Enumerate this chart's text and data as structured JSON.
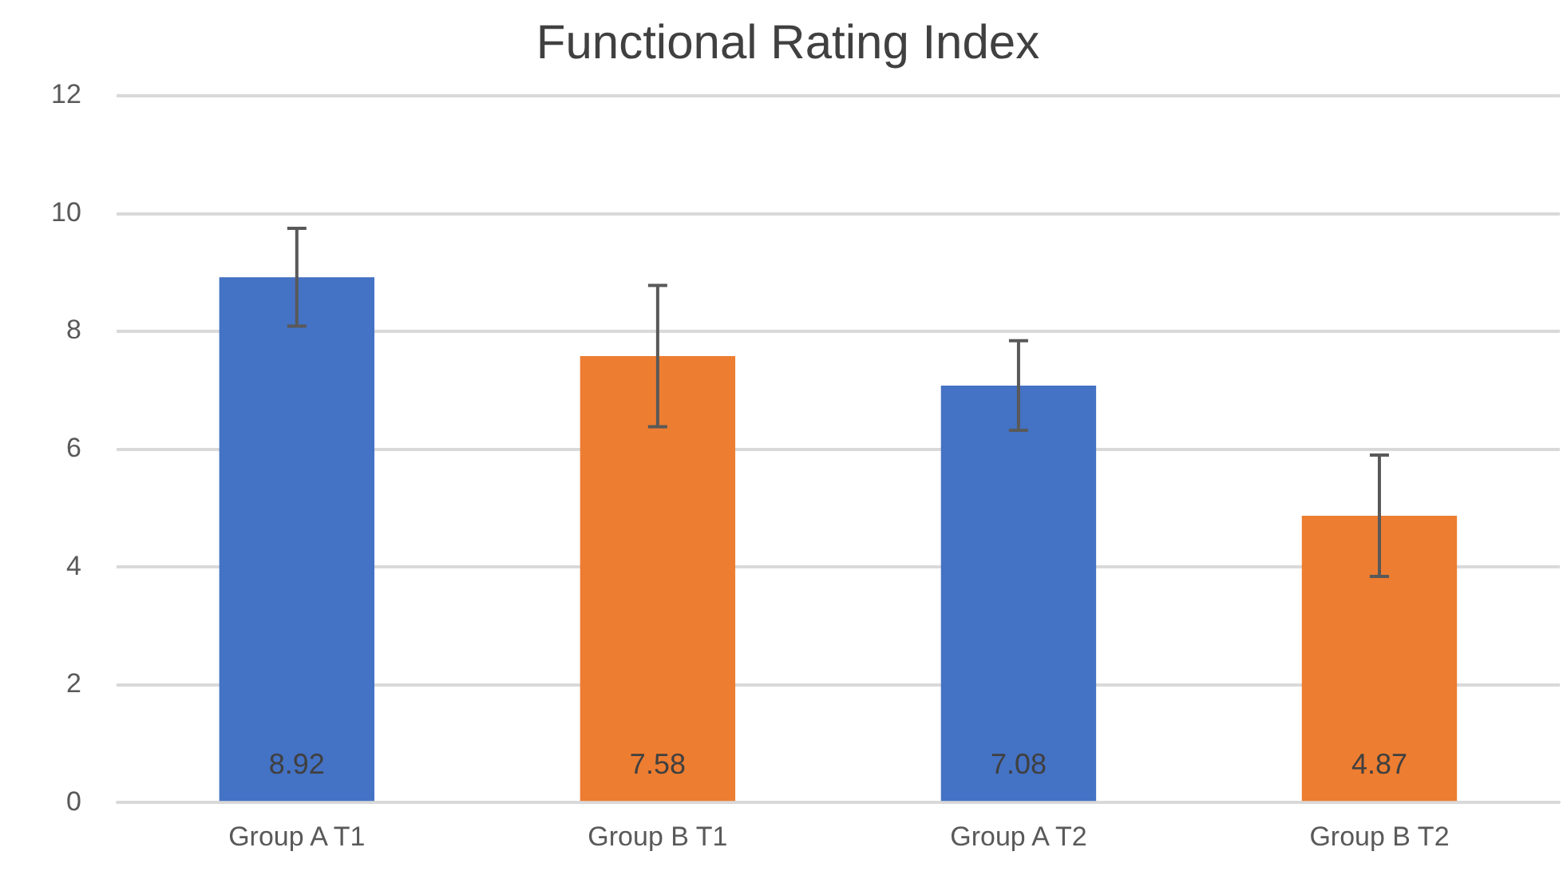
{
  "chart_data": {
    "type": "bar",
    "title": "Functional Rating Index",
    "categories": [
      "Group A T1",
      "Group B T1",
      "Group A T2",
      "Group B T2"
    ],
    "values": [
      8.92,
      7.58,
      7.08,
      4.87
    ],
    "colors": [
      "#4472c4",
      "#ed7d31",
      "#4472c4",
      "#ed7d31"
    ],
    "errors": [
      0.83,
      1.2,
      0.76,
      1.03
    ],
    "ylim": [
      0,
      12
    ],
    "yticks": [
      0,
      2,
      4,
      6,
      8,
      10,
      12
    ],
    "grid": "y",
    "legend": false,
    "data_labels": true
  }
}
